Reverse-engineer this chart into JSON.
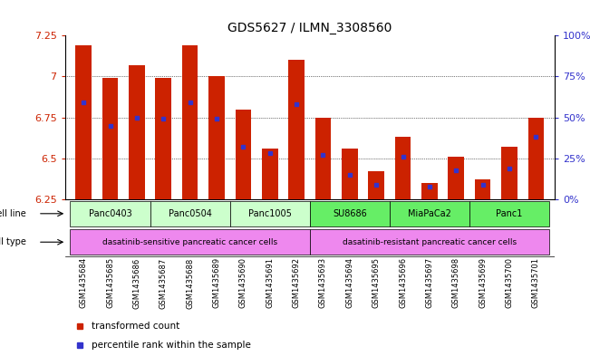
{
  "title": "GDS5627 / ILMN_3308560",
  "samples": [
    "GSM1435684",
    "GSM1435685",
    "GSM1435686",
    "GSM1435687",
    "GSM1435688",
    "GSM1435689",
    "GSM1435690",
    "GSM1435691",
    "GSM1435692",
    "GSM1435693",
    "GSM1435694",
    "GSM1435695",
    "GSM1435696",
    "GSM1435697",
    "GSM1435698",
    "GSM1435699",
    "GSM1435700",
    "GSM1435701"
  ],
  "bar_values": [
    7.19,
    6.99,
    7.07,
    6.99,
    7.19,
    7.0,
    6.8,
    6.56,
    7.1,
    6.75,
    6.56,
    6.42,
    6.63,
    6.35,
    6.51,
    6.37,
    6.57,
    6.75
  ],
  "percentile_values": [
    6.84,
    6.7,
    6.75,
    6.74,
    6.84,
    6.74,
    6.57,
    6.53,
    6.83,
    6.52,
    6.4,
    6.34,
    6.51,
    6.33,
    6.43,
    6.34,
    6.44,
    6.63
  ],
  "ylim": [
    6.25,
    7.25
  ],
  "yticks": [
    6.25,
    6.5,
    6.75,
    7.0,
    7.25
  ],
  "ytick_labels_left": [
    "6.25",
    "6.5",
    "6.75",
    "7",
    "7.25"
  ],
  "right_yticks": [
    0,
    25,
    50,
    75,
    100
  ],
  "bar_color": "#cc2200",
  "dot_color": "#3333cc",
  "cell_lines": [
    {
      "label": "Panc0403",
      "start": 0,
      "end": 2,
      "color": "#ccffcc"
    },
    {
      "label": "Panc0504",
      "start": 3,
      "end": 5,
      "color": "#ccffcc"
    },
    {
      "label": "Panc1005",
      "start": 6,
      "end": 8,
      "color": "#ccffcc"
    },
    {
      "label": "SU8686",
      "start": 9,
      "end": 11,
      "color": "#66ee66"
    },
    {
      "label": "MiaPaCa2",
      "start": 12,
      "end": 14,
      "color": "#66ee66"
    },
    {
      "label": "Panc1",
      "start": 15,
      "end": 17,
      "color": "#66ee66"
    }
  ],
  "cell_type_sensitive": {
    "label": "dasatinib-sensitive pancreatic cancer cells",
    "start": 0,
    "end": 8,
    "color": "#ee88ee"
  },
  "cell_type_resistant": {
    "label": "dasatinib-resistant pancreatic cancer cells",
    "start": 9,
    "end": 17,
    "color": "#ee88ee"
  },
  "sample_bg_color": "#cccccc",
  "legend_items": [
    {
      "label": "transformed count",
      "color": "#cc2200"
    },
    {
      "label": "percentile rank within the sample",
      "color": "#3333cc"
    }
  ]
}
